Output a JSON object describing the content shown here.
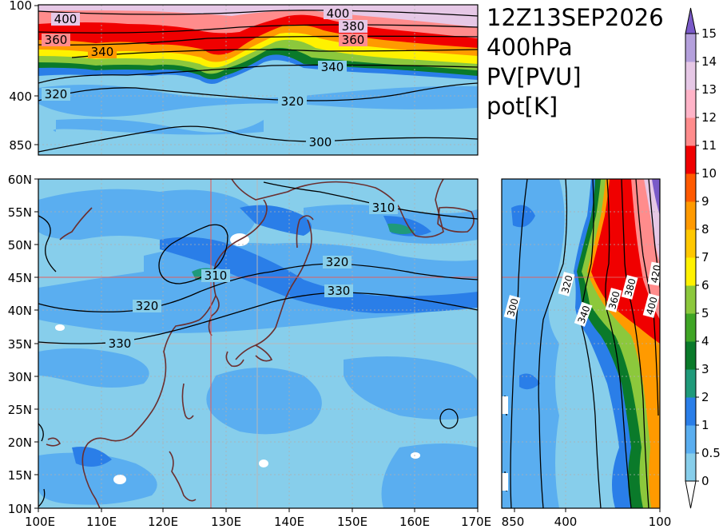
{
  "title": {
    "time": "12Z13SEP2026",
    "level": "400hPa",
    "field": "PV[PVU]",
    "contour": "pot[K]"
  },
  "map": {
    "lon_ticks": [
      "100E",
      "110E",
      "120E",
      "130E",
      "140E",
      "150E",
      "160E",
      "170E"
    ],
    "lat_ticks": [
      "10N",
      "15N",
      "20N",
      "25N",
      "30N",
      "35N",
      "40N",
      "45N",
      "50N",
      "55N",
      "60N"
    ],
    "cross_lon": 127.5,
    "cross_lat": 45,
    "theta_contours": [
      {
        "label": "310",
        "lon": 158.5,
        "lat": 56.5
      },
      {
        "label": "310",
        "lon": 128.5,
        "lat": 46
      },
      {
        "label": "320",
        "lon": 146.5,
        "lat": 47
      },
      {
        "label": "320",
        "lon": 117.5,
        "lat": 41
      },
      {
        "label": "330",
        "lon": 150,
        "lat": 42
      },
      {
        "label": "330",
        "lon": 112.5,
        "lat": 35.5
      }
    ]
  },
  "top_section": {
    "y_ticks": [
      "100",
      "400",
      "850"
    ],
    "theta_labels": [
      "400",
      "400",
      "380",
      "360",
      "360",
      "340",
      "340",
      "320",
      "320",
      "300"
    ]
  },
  "side_section": {
    "x_ticks": [
      "850",
      "400",
      "100"
    ],
    "theta_labels": [
      "300",
      "320",
      "340",
      "360",
      "380",
      "400",
      "420"
    ]
  },
  "colorbar": {
    "levels": [
      "0",
      "0.5",
      "1",
      "2",
      "3",
      "4",
      "5",
      "6",
      "7",
      "8",
      "9",
      "10",
      "11",
      "12",
      "13",
      "14",
      "15"
    ],
    "colors": [
      "#87ceeb",
      "#5aaef0",
      "#2a7ee8",
      "#1f9a7a",
      "#0a7a2a",
      "#3fa525",
      "#8cc83c",
      "#fff200",
      "#ffc800",
      "#ff9a00",
      "#ff5a00",
      "#f00000",
      "#ff8c8c",
      "#ffb4c8",
      "#e6c8e6",
      "#b4a0dc",
      "#7a5ac8"
    ]
  }
}
